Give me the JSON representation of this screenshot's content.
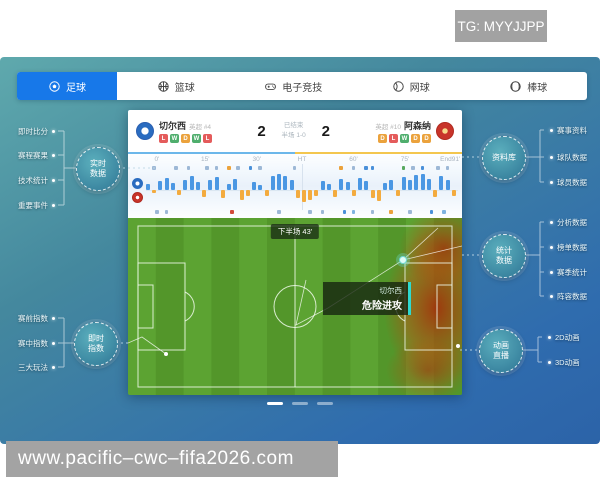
{
  "badge": "TG: MYYJJPP",
  "url": "www.pacific–cwc–fifa2026.com",
  "tabs": [
    {
      "label": "足球",
      "icon": "soccer",
      "active": true
    },
    {
      "label": "篮球",
      "icon": "basketball",
      "active": false
    },
    {
      "label": "电子竞技",
      "icon": "gamepad",
      "active": false
    },
    {
      "label": "网球",
      "icon": "tennis",
      "active": false
    },
    {
      "label": "棒球",
      "icon": "baseball",
      "active": false
    }
  ],
  "nodes": {
    "realtime": {
      "title": "实时数据",
      "items": [
        "即时比分",
        "赛程赛果",
        "技术统计",
        "重要事件"
      ]
    },
    "live_index": {
      "title": "即时指数",
      "items": [
        "赛前指数",
        "赛中指数",
        "三大玩法"
      ]
    },
    "database": {
      "title": "资料库",
      "items": [
        "赛事资料",
        "球队数据",
        "球员数据"
      ]
    },
    "stats": {
      "title": "统计数据",
      "items": [
        "分析数据",
        "榜单数据",
        "赛季统计",
        "阵容数据"
      ]
    },
    "animation": {
      "title": "动画直播",
      "items": [
        "2D动画",
        "3D动画"
      ]
    }
  },
  "scoreboard": {
    "home": {
      "name": "切尔西",
      "league": "英超 #4",
      "form": [
        "L",
        "W",
        "D",
        "W",
        "L"
      ]
    },
    "away": {
      "name": "阿森纳",
      "league": "英超 #10",
      "form": [
        "D",
        "L",
        "W",
        "D",
        "D"
      ]
    },
    "home_score": "2",
    "away_score": "2",
    "status": "已结束",
    "half": "半场 1-0"
  },
  "timeline": {
    "ticks": [
      {
        "t": "0'",
        "x": 0.035
      },
      {
        "t": "15'",
        "x": 0.19
      },
      {
        "t": "30'",
        "x": 0.355
      },
      {
        "t": "HT",
        "x": 0.5
      },
      {
        "t": "60'",
        "x": 0.665
      },
      {
        "t": "75'",
        "x": 0.83
      },
      {
        "t": "End91'",
        "x": 0.975
      }
    ],
    "bars": [
      0.35,
      -0.2,
      0.55,
      0.75,
      0.45,
      -0.3,
      0.6,
      0.9,
      0.5,
      -0.45,
      0.65,
      0.8,
      -0.5,
      0.4,
      0.7,
      -0.6,
      -0.35,
      0.5,
      0.3,
      -0.4,
      0.85,
      1.0,
      0.9,
      0.6,
      -0.5,
      -0.75,
      -0.6,
      -0.4,
      0.55,
      0.35,
      -0.45,
      0.7,
      0.5,
      -0.35,
      0.75,
      0.55,
      -0.5,
      -0.7,
      0.45,
      0.6,
      -0.4,
      0.8,
      0.65,
      0.95,
      1.0,
      0.7,
      -0.45,
      0.85,
      0.6,
      -0.35
    ],
    "markers_top": [
      {
        "x": 0.02,
        "c": "#9db8d6"
      },
      {
        "x": 0.09,
        "c": "#9db8d6"
      },
      {
        "x": 0.13,
        "c": "#9db8d6"
      },
      {
        "x": 0.19,
        "c": "#9db8d6"
      },
      {
        "x": 0.22,
        "c": "#9db8d6"
      },
      {
        "x": 0.26,
        "c": "#eba23c"
      },
      {
        "x": 0.29,
        "c": "#9db8d6"
      },
      {
        "x": 0.33,
        "c": "#4a90d9"
      },
      {
        "x": 0.36,
        "c": "#9db8d6"
      },
      {
        "x": 0.47,
        "c": "#9db8d6"
      },
      {
        "x": 0.62,
        "c": "#eba23c"
      },
      {
        "x": 0.66,
        "c": "#9db8d6"
      },
      {
        "x": 0.7,
        "c": "#4a90d9"
      },
      {
        "x": 0.72,
        "c": "#4a90d9"
      },
      {
        "x": 0.82,
        "c": "#57a85f"
      },
      {
        "x": 0.85,
        "c": "#9db8d6"
      },
      {
        "x": 0.88,
        "c": "#4a90d9"
      },
      {
        "x": 0.93,
        "c": "#9db8d6"
      },
      {
        "x": 0.96,
        "c": "#9db8d6"
      }
    ],
    "markers_bottom": [
      {
        "x": 0.03,
        "c": "#9db8d6"
      },
      {
        "x": 0.06,
        "c": "#9db8d6"
      },
      {
        "x": 0.27,
        "c": "#d24a3a"
      },
      {
        "x": 0.42,
        "c": "#9db8d6"
      },
      {
        "x": 0.52,
        "c": "#9db8d6"
      },
      {
        "x": 0.56,
        "c": "#9db8d6"
      },
      {
        "x": 0.63,
        "c": "#4a90d9"
      },
      {
        "x": 0.66,
        "c": "#7fb3e0"
      },
      {
        "x": 0.72,
        "c": "#9db8d6"
      },
      {
        "x": 0.78,
        "c": "#eba23c"
      },
      {
        "x": 0.84,
        "c": "#9db8d6"
      },
      {
        "x": 0.91,
        "c": "#4a90d9"
      },
      {
        "x": 0.95,
        "c": "#7fb3e0"
      }
    ]
  },
  "pitch": {
    "clock": "下半场  43'",
    "event_team": "切尔西",
    "event_type": "危险进攻"
  },
  "pagination": {
    "total": 3,
    "active": 0
  },
  "colors": {
    "accent_blue": "#1778e9",
    "home_bar": "#4a97e3",
    "away_bar": "#f3ab3f",
    "home_line": "#6cb7ea",
    "away_line": "#f3c64e",
    "win": "#4fae6d",
    "loss": "#e45b5b",
    "draw": "#eba23c",
    "node_teal": "#3c96a4",
    "heat_red": "#b84a10"
  }
}
